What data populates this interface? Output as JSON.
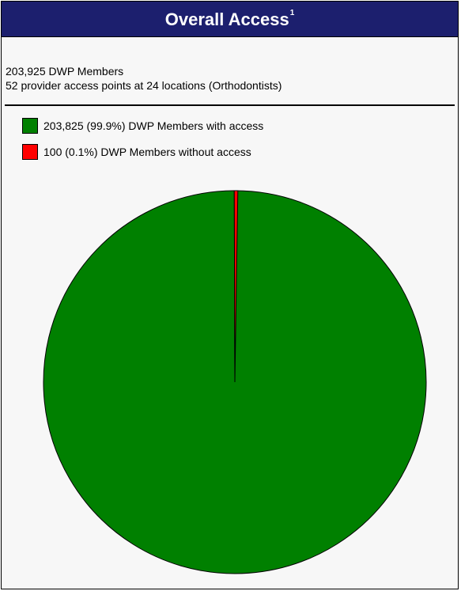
{
  "panel": {
    "title": "Overall Access",
    "title_superscript": "1",
    "summary_line1": "203,925 DWP Members",
    "summary_line2": "52 provider access points at 24 locations (Orthodontists)",
    "header_color": "#1c1f6e"
  },
  "chart_data": {
    "type": "pie",
    "title": "Overall Access",
    "total_label": "203,925 DWP Members",
    "slices": [
      {
        "legend_label": "203,825 (99.9%) DWP Members with access",
        "value": 203825,
        "percent": 99.9,
        "color": "#008000"
      },
      {
        "legend_label": "100 (0.1%) DWP Members without access",
        "value": 100,
        "percent": 0.1,
        "color": "#ff0000"
      }
    ],
    "legend_position": "top-left"
  }
}
